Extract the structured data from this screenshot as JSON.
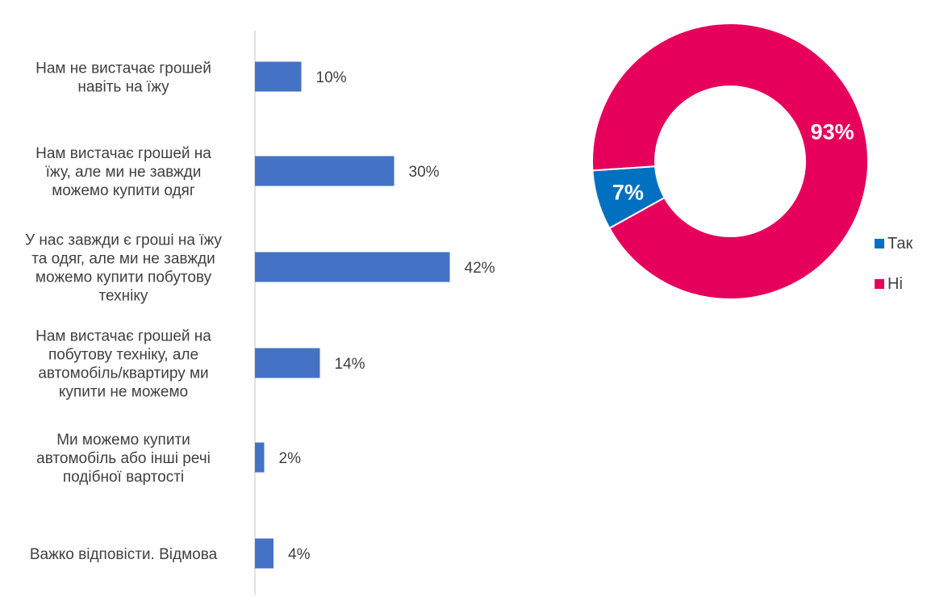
{
  "chart_data": [
    {
      "type": "bar",
      "orientation": "horizontal",
      "categories": [
        [
          "Нам не вистачає грошей",
          "навіть на їжу"
        ],
        [
          "Нам вистачає грошей на",
          "їжу, але ми не завжди",
          "можемо купити одяг"
        ],
        [
          "У нас завжди є гроші на їжу",
          "та одяг, але ми не завжди",
          "можемо купити побутову",
          "техніку"
        ],
        [
          "Нам вистачає грошей на",
          "побутову техніку, але",
          "автомобіль/квартиру ми",
          "купити не можемо"
        ],
        [
          "Ми можемо купити",
          "автомобіль або інші речі",
          "подібної вартості"
        ],
        [
          "Важко відповісти. Відмова"
        ]
      ],
      "values": [
        10,
        30,
        42,
        14,
        2,
        4
      ],
      "value_labels": [
        "10%",
        "30%",
        "42%",
        "14%",
        "2%",
        "4%"
      ],
      "value_unit": "%",
      "xlim": [
        0,
        100
      ],
      "bar_color": "#4472C4",
      "grid": false
    },
    {
      "type": "pie",
      "style": "donut",
      "slices": [
        {
          "name": "Так",
          "value": 7,
          "label": "7%",
          "color": "#0070C0"
        },
        {
          "name": "Ні",
          "value": 93,
          "label": "93%",
          "color": "#E6005C"
        }
      ],
      "legend": {
        "position": "right",
        "entries": [
          "Так",
          "Ні"
        ]
      }
    }
  ]
}
